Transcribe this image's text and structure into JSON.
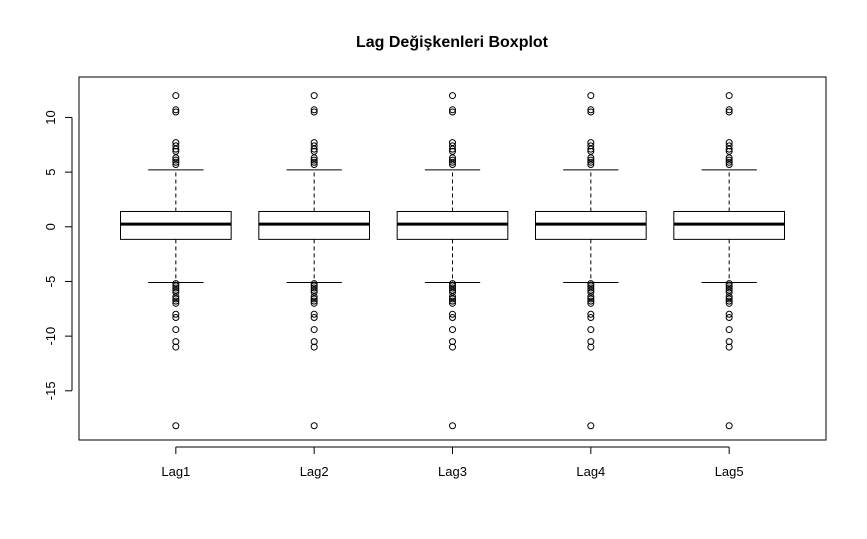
{
  "chart_data": {
    "type": "boxplot",
    "title": "Lag Değişkenleri Boxplot",
    "xlabel": "",
    "ylabel": "",
    "categories": [
      "Lag1",
      "Lag2",
      "Lag3",
      "Lag4",
      "Lag5"
    ],
    "ylim": [
      -19.5,
      13.7
    ],
    "yticks": [
      -15,
      -10,
      -5,
      0,
      5,
      10
    ],
    "series": [
      {
        "category": "Lag1",
        "q1": -1.15,
        "median": 0.24,
        "q3": 1.4,
        "whisker_low": -5.1,
        "whisker_high": 5.2,
        "outliers": [
          12.0,
          10.7,
          10.5,
          7.7,
          7.4,
          7.1,
          6.9,
          6.3,
          6.1,
          5.9,
          5.7,
          -5.2,
          -5.4,
          -5.6,
          -5.8,
          -6.0,
          -6.4,
          -6.6,
          -6.8,
          -7.0,
          -8.0,
          -8.3,
          -9.4,
          -10.5,
          -11.0,
          -18.2
        ]
      },
      {
        "category": "Lag2",
        "q1": -1.15,
        "median": 0.24,
        "q3": 1.4,
        "whisker_low": -5.1,
        "whisker_high": 5.2,
        "outliers": [
          12.0,
          10.7,
          10.5,
          7.7,
          7.4,
          7.1,
          6.9,
          6.3,
          6.1,
          5.9,
          5.7,
          -5.2,
          -5.4,
          -5.6,
          -5.8,
          -6.0,
          -6.4,
          -6.6,
          -6.8,
          -7.0,
          -8.0,
          -8.3,
          -9.4,
          -10.5,
          -11.0,
          -18.2
        ]
      },
      {
        "category": "Lag3",
        "q1": -1.15,
        "median": 0.24,
        "q3": 1.4,
        "whisker_low": -5.1,
        "whisker_high": 5.2,
        "outliers": [
          12.0,
          10.7,
          10.5,
          7.7,
          7.4,
          7.1,
          6.9,
          6.3,
          6.1,
          5.9,
          5.7,
          -5.2,
          -5.4,
          -5.6,
          -5.8,
          -6.0,
          -6.4,
          -6.6,
          -6.8,
          -7.0,
          -8.0,
          -8.3,
          -9.4,
          -10.5,
          -11.0,
          -18.2
        ]
      },
      {
        "category": "Lag4",
        "q1": -1.15,
        "median": 0.24,
        "q3": 1.4,
        "whisker_low": -5.1,
        "whisker_high": 5.2,
        "outliers": [
          12.0,
          10.7,
          10.5,
          7.7,
          7.4,
          7.1,
          6.9,
          6.3,
          6.1,
          5.9,
          5.7,
          -5.2,
          -5.4,
          -5.6,
          -5.8,
          -6.0,
          -6.4,
          -6.6,
          -6.8,
          -7.0,
          -8.0,
          -8.3,
          -9.4,
          -10.5,
          -11.0,
          -18.2
        ]
      },
      {
        "category": "Lag5",
        "q1": -1.15,
        "median": 0.24,
        "q3": 1.4,
        "whisker_low": -5.1,
        "whisker_high": 5.2,
        "outliers": [
          12.0,
          10.7,
          10.5,
          7.7,
          7.4,
          7.1,
          6.9,
          6.3,
          6.1,
          5.9,
          5.7,
          -5.2,
          -5.4,
          -5.6,
          -5.8,
          -6.0,
          -6.4,
          -6.6,
          -6.8,
          -7.0,
          -8.0,
          -8.3,
          -9.4,
          -10.5,
          -11.0,
          -18.2
        ]
      }
    ],
    "grid": false,
    "legend": "none",
    "box_fill_color": "#ffffff",
    "line_color": "#000000"
  }
}
